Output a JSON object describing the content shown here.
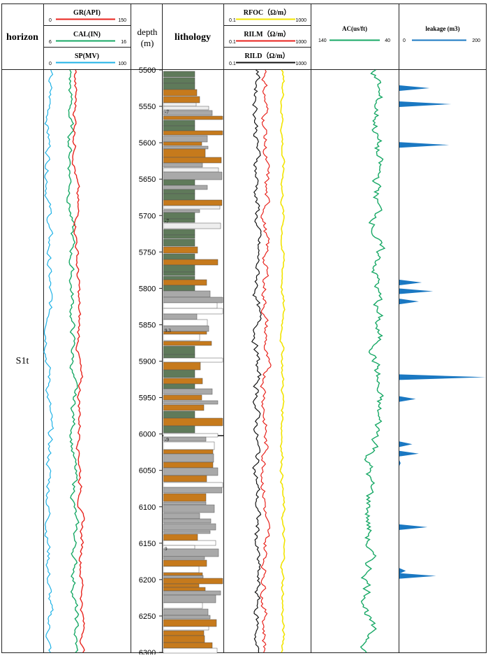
{
  "chart_data": {
    "type": "well-log",
    "header": {
      "horizon": "horizon",
      "depth": "depth",
      "depth_unit": "(m)",
      "lithology": "lithology"
    },
    "depth_range": [
      5500,
      6300
    ],
    "depth_ticks": [
      "5500",
      "5550",
      "5600",
      "5650",
      "5700",
      "5750",
      "5800",
      "5850",
      "5900",
      "5950",
      "6000",
      "6050",
      "6100",
      "6150",
      "6200",
      "6250",
      "6300"
    ],
    "horizon_label": "S1t",
    "track1_curves": [
      {
        "name": "GR(API)",
        "min": "0",
        "max": "150",
        "color": "#e8231d"
      },
      {
        "name": "CAL(IN)",
        "min": "6",
        "max": "16",
        "color": "#17a865"
      },
      {
        "name": "SP(MV)",
        "min": "0",
        "max": "100",
        "color": "#1fb2e6"
      }
    ],
    "resistivity_curves": [
      {
        "name": "RFOC（Ω/m）",
        "min": "0.1",
        "max": "1000",
        "color": "#f2e400"
      },
      {
        "name": "RILM（Ω/m）",
        "min": "0.1",
        "max": "1000",
        "color": "#e8231d"
      },
      {
        "name": "RILD（Ω/m）",
        "min": "0.1",
        "max": "1000",
        "color": "#111111"
      }
    ],
    "ac_curve": {
      "name": "AC(us/ft)",
      "left": "140",
      "right": "40",
      "color": "#17a865"
    },
    "leakage": {
      "name": "leakage (m3)",
      "min": "0",
      "max": "200",
      "color": "#1a78c2",
      "peaks": [
        {
          "depth": 5525,
          "value": 70
        },
        {
          "depth": 5547,
          "value": 120
        },
        {
          "depth": 5603,
          "value": 115
        },
        {
          "depth": 5792,
          "value": 52
        },
        {
          "depth": 5804,
          "value": 78
        },
        {
          "depth": 5818,
          "value": 45
        },
        {
          "depth": 5922,
          "value": 200
        },
        {
          "depth": 5952,
          "value": 38
        },
        {
          "depth": 6014,
          "value": 30
        },
        {
          "depth": 6027,
          "value": 45
        },
        {
          "depth": 6040,
          "value": 3
        },
        {
          "depth": 6128,
          "value": 65
        },
        {
          "depth": 6188,
          "value": 15
        },
        {
          "depth": 6195,
          "value": 85
        }
      ]
    },
    "lithology_labels": [
      "-7",
      "-7",
      "9.3",
      "-9",
      "9"
    ]
  }
}
